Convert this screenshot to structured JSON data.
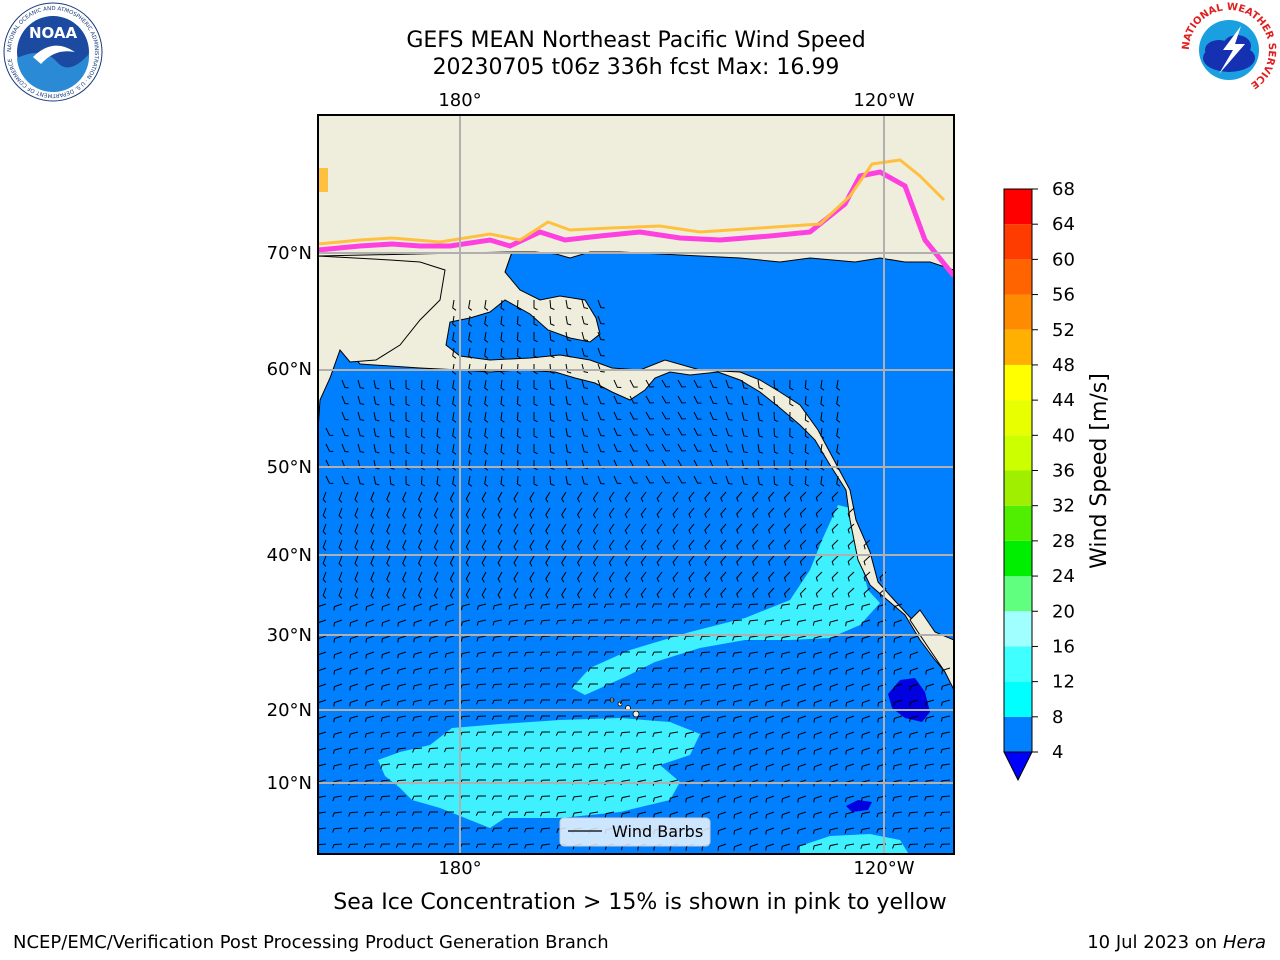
{
  "header": {
    "title_line1": "GEFS MEAN Northeast Pacific Wind Speed",
    "title_line2": "20230705 t06z 336h fcst   Max: 16.99"
  },
  "logos": {
    "noaa_text": "NOAA",
    "noaa_ring_text": "NATIONAL OCEANIC AND ATMOSPHERIC ADMINISTRATION · U.S. DEPARTMENT OF COMMERCE",
    "nws_ring_text": "NATIONAL WEATHER SERVICE"
  },
  "map": {
    "lon_ticks_top": [
      "180°",
      "120°W"
    ],
    "lon_ticks_bottom": [
      "180°",
      "120°W"
    ],
    "lat_ticks": [
      "70°N",
      "60°N",
      "50°N",
      "40°N",
      "30°N",
      "20°N",
      "10°N"
    ],
    "legend_label": "Wind Barbs"
  },
  "colorbar": {
    "label": "Wind Speed [m/s]",
    "ticks": [
      "4",
      "8",
      "12",
      "16",
      "20",
      "24",
      "28",
      "32",
      "36",
      "40",
      "44",
      "48",
      "52",
      "56",
      "60",
      "64",
      "68"
    ],
    "colors": [
      "#0080ff",
      "#00ffff",
      "#40ffff",
      "#a0ffff",
      "#60ff80",
      "#00ee00",
      "#50ee00",
      "#a0ee00",
      "#ccff00",
      "#e8ff00",
      "#ffff00",
      "#ffb000",
      "#ff8c00",
      "#ff6400",
      "#ff3c00",
      "#ff0000"
    ],
    "under_color": "#0000ff"
  },
  "colors": {
    "land": "#efeedc",
    "ocean_base": "#0080ff",
    "ocean_light": "#3ff0ff",
    "ocean_dark": "#0000e0",
    "sea_ice_pink": "#ff40e0",
    "sea_ice_yellow": "#ffc040"
  },
  "footer": {
    "caption": "Sea Ice Concentration > 15% is shown in pink to yellow",
    "credit": "NCEP/EMC/Verification Post Processing Product Generation Branch",
    "stamp_date": "10 Jul 2023 on",
    "stamp_machine": "Hera"
  }
}
